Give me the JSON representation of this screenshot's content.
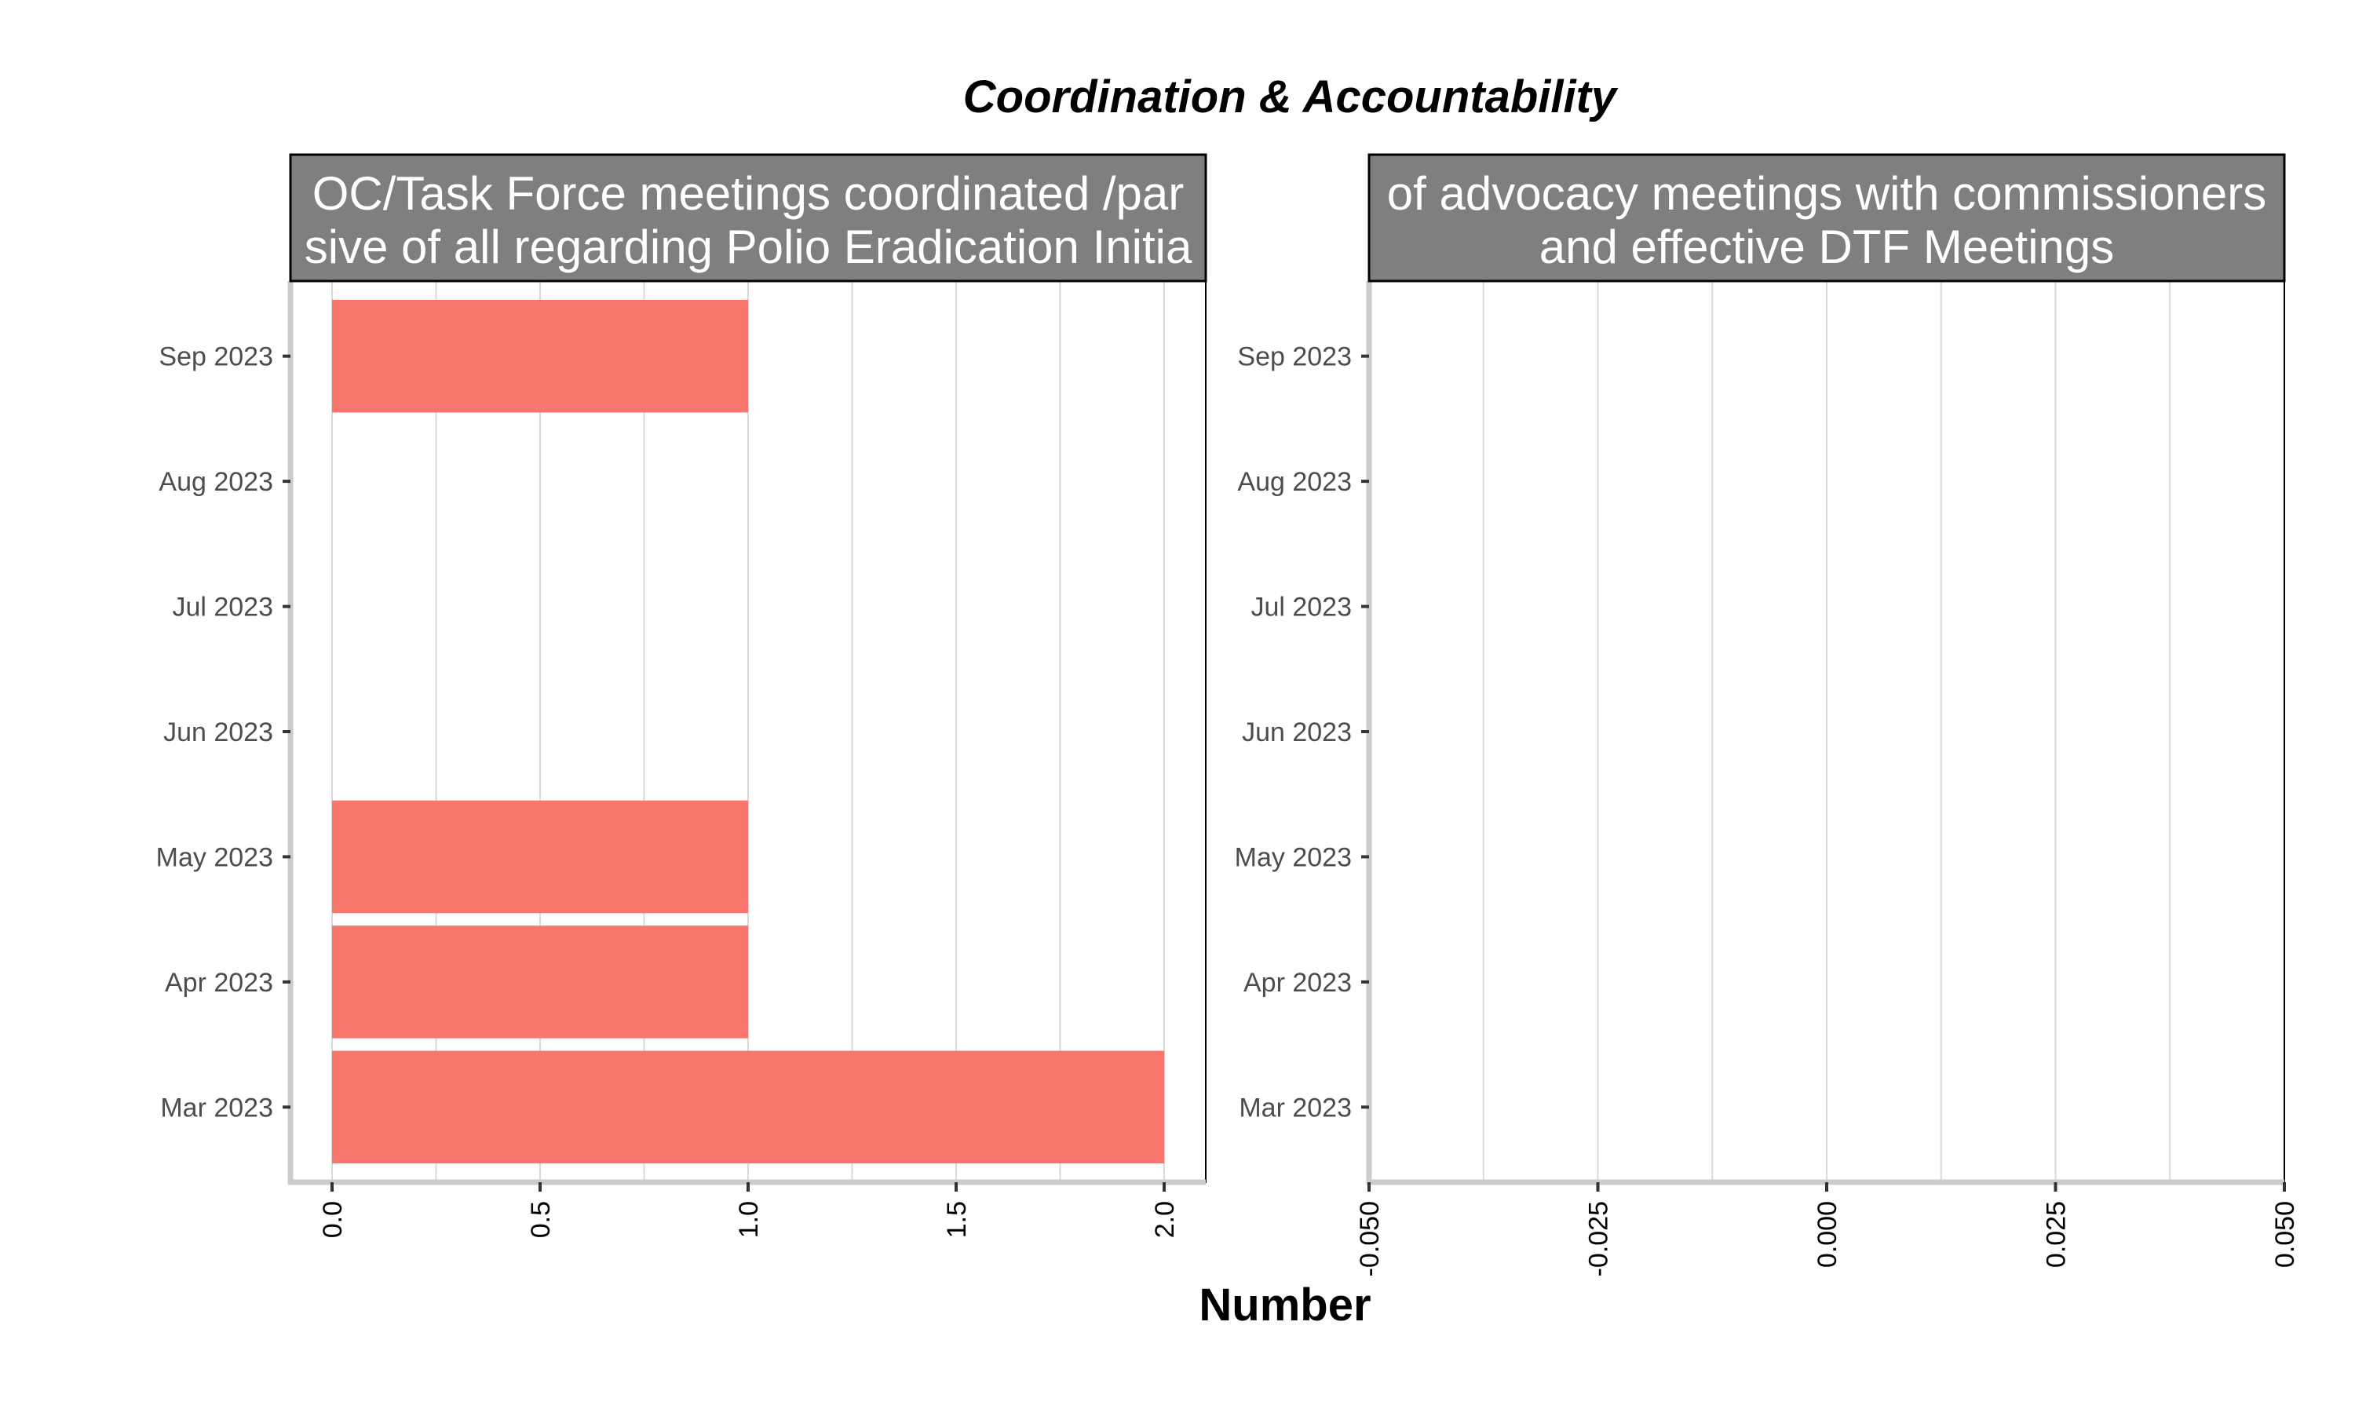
{
  "title": "Coordination & Accountability",
  "xlabel": "Number",
  "colors": {
    "bar": "#F8766D",
    "strip_background": "#7F7F7F",
    "strip_text": "#FFFFFF",
    "grid": "#D9D9D9",
    "axis_line": "#CCCCCC"
  },
  "chart_data": [
    {
      "type": "bar",
      "orientation": "horizontal",
      "facet_title_lines": [
        "OC/Task Force meetings coordinated /par",
        "sive of all regarding Polio Eradication Initia"
      ],
      "categories": [
        "Mar 2023",
        "Apr 2023",
        "May 2023",
        "Jun 2023",
        "Jul 2023",
        "Aug 2023",
        "Sep 2023"
      ],
      "values": [
        2,
        1,
        1,
        null,
        null,
        null,
        1
      ],
      "xlim": [
        -0.1,
        2.1
      ],
      "xticks": [
        "0.0",
        "0.5",
        "1.0",
        "1.5",
        "2.0"
      ],
      "xtick_values": [
        0,
        0.5,
        1,
        1.5,
        2
      ],
      "grid": true
    },
    {
      "type": "bar",
      "orientation": "horizontal",
      "facet_title_lines": [
        "of advocacy meetings with commissioners",
        "and effective DTF Meetings"
      ],
      "categories": [
        "Mar 2023",
        "Apr 2023",
        "May 2023",
        "Jun 2023",
        "Jul 2023",
        "Aug 2023",
        "Sep 2023"
      ],
      "values": [
        null,
        null,
        null,
        null,
        null,
        null,
        null
      ],
      "xlim": [
        -0.05,
        0.05
      ],
      "xticks": [
        "-0.050",
        "-0.025",
        "0.000",
        "0.025",
        "0.050"
      ],
      "xtick_values": [
        -0.05,
        -0.025,
        0,
        0.025,
        0.05
      ],
      "grid": true
    }
  ]
}
